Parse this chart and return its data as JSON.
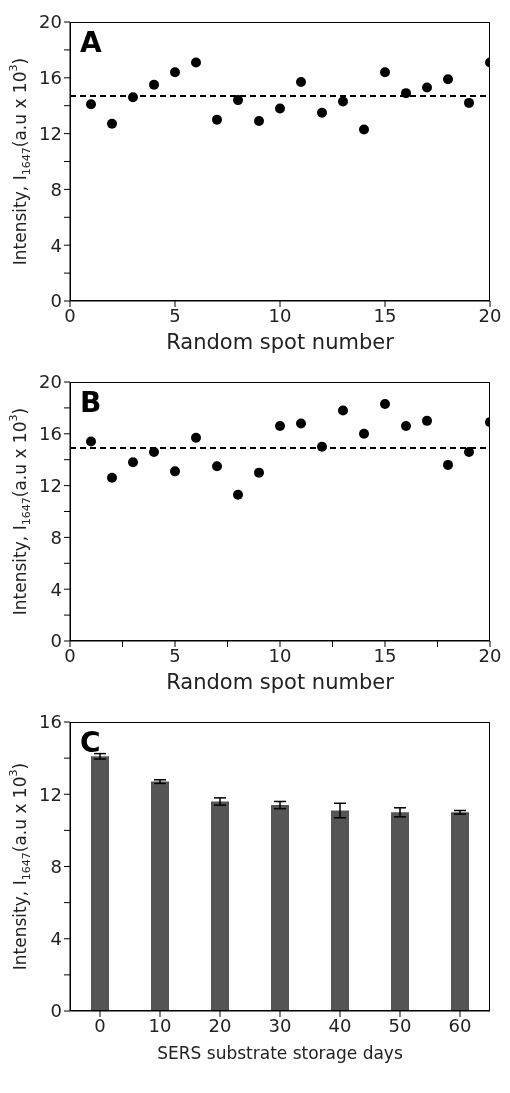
{
  "chart_data": [
    {
      "type": "scatter",
      "annotations": [
        "A"
      ],
      "xlabel": "Random spot number",
      "ylabel": "Intensity, I$_{1647}$(a.u x 10$^{3}$)",
      "x": [
        1,
        2,
        3,
        4,
        5,
        6,
        7,
        8,
        9,
        10,
        11,
        12,
        13,
        14,
        15,
        16,
        17,
        18,
        19,
        20
      ],
      "values": [
        14.1,
        12.7,
        14.6,
        15.5,
        16.4,
        17.1,
        13.0,
        14.4,
        12.9,
        13.8,
        15.7,
        13.5,
        14.3,
        12.3,
        16.4,
        14.9,
        15.3,
        15.9,
        14.2,
        17.1
      ],
      "color": "#000000",
      "marker": "circle",
      "xlim": [
        0,
        20
      ],
      "xticks": [
        0,
        5,
        10,
        15,
        20
      ],
      "ylim": [
        0,
        20
      ],
      "yticks": [
        0,
        {
          "value": 2,
          "label": null
        },
        4,
        {
          "value": 6,
          "label": null
        },
        8,
        {
          "value": 10,
          "label": null
        },
        12,
        {
          "value": 14,
          "label": null
        },
        16,
        {
          "value": 18,
          "label": null
        },
        20
      ],
      "ref_lines": [
        {
          "axis": "y",
          "value": 14.7,
          "color": "#000000",
          "line_style": "dashed"
        }
      ],
      "grid": false,
      "legend": false
    },
    {
      "type": "scatter",
      "annotations": [
        "B"
      ],
      "xlabel": "Random spot number",
      "ylabel": "Intensity, I$_{1647}$(a.u x 10$^{3}$)",
      "x": [
        1,
        2,
        3,
        4,
        5,
        6,
        7,
        8,
        9,
        10,
        11,
        12,
        13,
        14,
        15,
        16,
        17,
        18,
        19,
        20
      ],
      "values": [
        15.4,
        12.6,
        13.8,
        14.6,
        13.1,
        15.7,
        13.5,
        11.3,
        13.0,
        16.6,
        16.8,
        15.0,
        17.8,
        16.0,
        18.3,
        16.6,
        17.0,
        13.6,
        14.6,
        16.9
      ],
      "color": "#000000",
      "marker": "circle",
      "xlim": [
        0,
        20
      ],
      "xticks": [
        0,
        {
          "value": 2.5,
          "label": null
        },
        5,
        {
          "value": 7.5,
          "label": null
        },
        10,
        {
          "value": 12.5,
          "label": null
        },
        15,
        {
          "value": 17.5,
          "label": null
        },
        20
      ],
      "ylim": [
        0,
        20
      ],
      "yticks": [
        0,
        {
          "value": 2,
          "label": null
        },
        4,
        {
          "value": 6,
          "label": null
        },
        8,
        {
          "value": 10,
          "label": null
        },
        12,
        {
          "value": 14,
          "label": null
        },
        16,
        {
          "value": 18,
          "label": null
        },
        20
      ],
      "ref_lines": [
        {
          "axis": "y",
          "value": 14.9,
          "color": "#000000",
          "line_style": "dashed"
        }
      ],
      "grid": false,
      "legend": false
    },
    {
      "type": "bar",
      "annotations": [
        "C"
      ],
      "xlabel": "SERS substrate storage days",
      "ylabel": "Intensity, I$_{1647}$(a.u x 10$^{3}$)",
      "categories": [
        "0",
        "10",
        "20",
        "30",
        "40",
        "50",
        "60"
      ],
      "values": [
        14.1,
        12.7,
        11.6,
        11.4,
        11.1,
        11.0,
        11.0
      ],
      "errors": [
        0.15,
        0.1,
        0.2,
        0.2,
        0.4,
        0.25,
        0.1
      ],
      "color": "#555555",
      "ylim": [
        0,
        16
      ],
      "yticks": [
        0,
        {
          "value": 2,
          "label": null
        },
        4,
        {
          "value": 6,
          "label": null
        },
        8,
        {
          "value": 10,
          "label": null
        },
        12,
        {
          "value": 14,
          "label": null
        },
        16
      ],
      "grid": false,
      "legend": false
    }
  ]
}
